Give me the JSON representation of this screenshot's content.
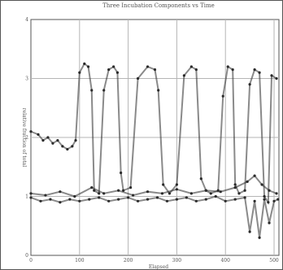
{
  "chart_data": {
    "type": "scatter",
    "title": "Three Incubation Components vs Time",
    "xlabel": "Elapsed",
    "ylabel": "relative fraction of total",
    "xlim": [
      0,
      510
    ],
    "ylim": [
      0,
      4
    ],
    "x_ticks": [
      "0",
      "100",
      "200",
      "300",
      "400",
      "500"
    ],
    "y_ticks": [
      "0",
      "1",
      "2",
      "3",
      "4"
    ],
    "grid": true,
    "colors": {
      "points": "#2a2a2a",
      "grid": "#b5b5b5",
      "axes": "#555555",
      "text": "#555555"
    },
    "series": [
      {
        "values": [
          [
            0,
            2.1
          ],
          [
            15,
            2.05
          ],
          [
            25,
            1.95
          ],
          [
            35,
            2.0
          ],
          [
            45,
            1.9
          ],
          [
            55,
            1.95
          ],
          [
            65,
            1.85
          ],
          [
            75,
            1.8
          ],
          [
            85,
            1.85
          ],
          [
            92,
            1.95
          ],
          [
            100,
            3.1
          ],
          [
            110,
            3.25
          ],
          [
            118,
            3.2
          ],
          [
            125,
            2.8
          ],
          [
            130,
            1.1
          ],
          [
            140,
            1.05
          ],
          [
            150,
            2.8
          ],
          [
            160,
            3.15
          ],
          [
            170,
            3.2
          ],
          [
            178,
            3.1
          ],
          [
            185,
            1.4
          ],
          [
            190,
            1.1
          ],
          [
            205,
            1.15
          ],
          [
            220,
            3.0
          ],
          [
            240,
            3.2
          ],
          [
            255,
            3.15
          ],
          [
            262,
            2.8
          ],
          [
            272,
            1.2
          ],
          [
            285,
            1.05
          ],
          [
            300,
            1.2
          ],
          [
            315,
            3.05
          ],
          [
            330,
            3.2
          ],
          [
            340,
            3.15
          ],
          [
            350,
            1.3
          ],
          [
            360,
            1.1
          ],
          [
            370,
            1.05
          ],
          [
            385,
            1.1
          ],
          [
            395,
            2.7
          ],
          [
            405,
            3.2
          ],
          [
            415,
            3.15
          ],
          [
            420,
            1.2
          ],
          [
            428,
            1.05
          ],
          [
            440,
            1.1
          ],
          [
            450,
            2.9
          ],
          [
            460,
            3.15
          ],
          [
            470,
            3.1
          ],
          [
            480,
            1.0
          ],
          [
            488,
            0.9
          ],
          [
            495,
            3.05
          ],
          [
            505,
            3.0
          ]
        ]
      },
      {
        "values": [
          [
            0,
            0.98
          ],
          [
            20,
            0.92
          ],
          [
            40,
            0.95
          ],
          [
            60,
            0.9
          ],
          [
            80,
            0.95
          ],
          [
            100,
            0.92
          ],
          [
            120,
            0.95
          ],
          [
            140,
            0.98
          ],
          [
            160,
            0.92
          ],
          [
            180,
            0.95
          ],
          [
            200,
            0.98
          ],
          [
            220,
            0.92
          ],
          [
            240,
            0.95
          ],
          [
            260,
            0.98
          ],
          [
            280,
            0.92
          ],
          [
            300,
            0.95
          ],
          [
            320,
            0.98
          ],
          [
            340,
            0.92
          ],
          [
            360,
            0.95
          ],
          [
            380,
            1.0
          ],
          [
            400,
            0.92
          ],
          [
            420,
            0.95
          ],
          [
            440,
            0.98
          ],
          [
            450,
            0.4
          ],
          [
            460,
            0.92
          ],
          [
            470,
            0.3
          ],
          [
            480,
            0.95
          ],
          [
            490,
            0.55
          ],
          [
            500,
            0.92
          ],
          [
            508,
            0.95
          ]
        ]
      },
      {
        "values": [
          [
            0,
            1.05
          ],
          [
            30,
            1.02
          ],
          [
            60,
            1.08
          ],
          [
            90,
            1.0
          ],
          [
            125,
            1.15
          ],
          [
            150,
            1.05
          ],
          [
            180,
            1.1
          ],
          [
            210,
            1.02
          ],
          [
            240,
            1.08
          ],
          [
            270,
            1.05
          ],
          [
            300,
            1.12
          ],
          [
            330,
            1.05
          ],
          [
            360,
            1.1
          ],
          [
            390,
            1.08
          ],
          [
            420,
            1.15
          ],
          [
            445,
            1.25
          ],
          [
            460,
            1.35
          ],
          [
            475,
            1.2
          ],
          [
            490,
            1.1
          ],
          [
            505,
            1.05
          ]
        ]
      }
    ]
  }
}
